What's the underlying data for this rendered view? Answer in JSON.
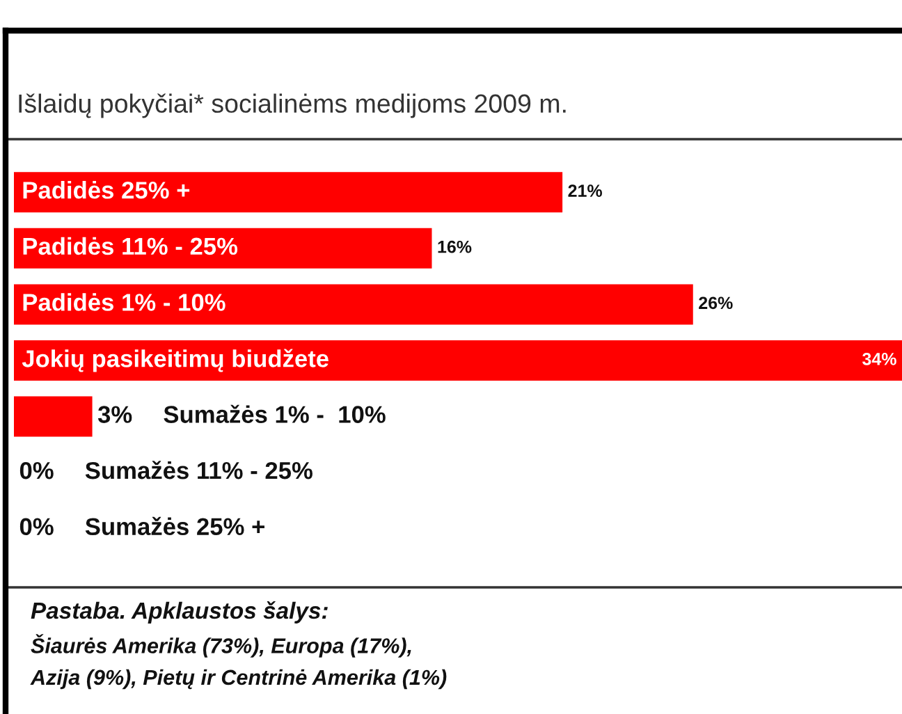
{
  "chart_data": {
    "type": "bar",
    "orientation": "horizontal",
    "title": "Išlaidų pokyčiai* socialinėms medijoms 2009 m.",
    "categories": [
      "Padidės 25% +",
      "Padidės 11% - 25%",
      "Padidės 1% - 10%",
      "Jokių pasikeitimų biudžete",
      "Sumažės 1% -  10%",
      "Sumažės 11% - 25%",
      "Sumažės 25% +"
    ],
    "values": [
      21,
      16,
      26,
      34,
      3,
      0,
      0
    ],
    "value_labels": [
      "21%",
      "16%",
      "26%",
      "34%",
      "3%",
      "0%",
      "0%"
    ],
    "color": "#ff0000",
    "annotations": [
      "Pastaba. Apklaustos šalys:",
      "Šiaurės Amerika (73%), Europa (17%),",
      "Azija (9%), Pietų ir Centrinė Amerika (1%)"
    ]
  }
}
